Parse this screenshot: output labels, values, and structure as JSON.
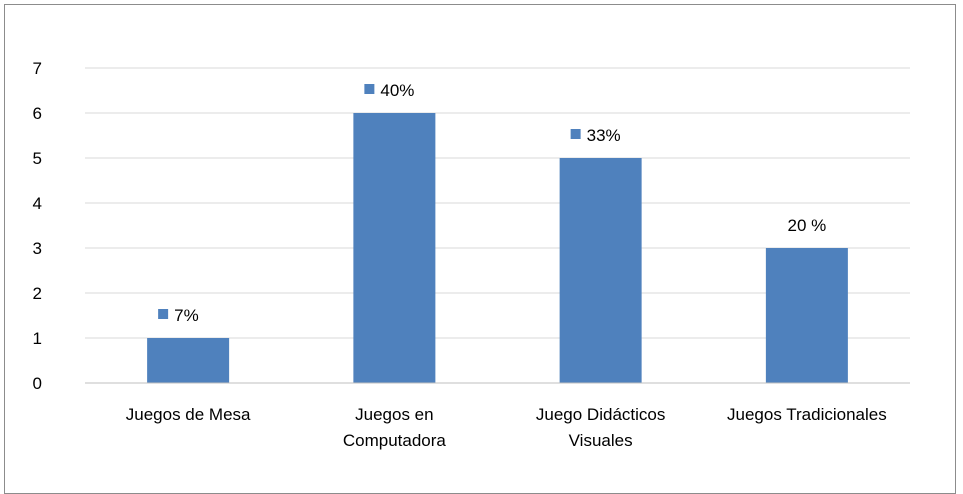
{
  "chart_data": {
    "type": "bar",
    "categories": [
      [
        "Juegos de Mesa"
      ],
      [
        "Juegos en",
        "Computadora"
      ],
      [
        "Juego Didácticos",
        "Visuales"
      ],
      [
        "Juegos Tradicionales"
      ]
    ],
    "values": [
      1,
      6,
      5,
      3
    ],
    "data_labels": [
      "7%",
      "40%",
      "33%",
      "20 %"
    ],
    "data_label_has_legend_key": [
      true,
      true,
      true,
      false
    ],
    "ylim": [
      0,
      7
    ],
    "yticks": [
      "0",
      "1",
      "2",
      "3",
      "4",
      "5",
      "6",
      "7"
    ],
    "grid": true,
    "colors": {
      "bar": "#4f81bd",
      "grid": "#d9d9d9",
      "axis": "#bfbfbf",
      "frame": "#8c8c8c"
    }
  }
}
